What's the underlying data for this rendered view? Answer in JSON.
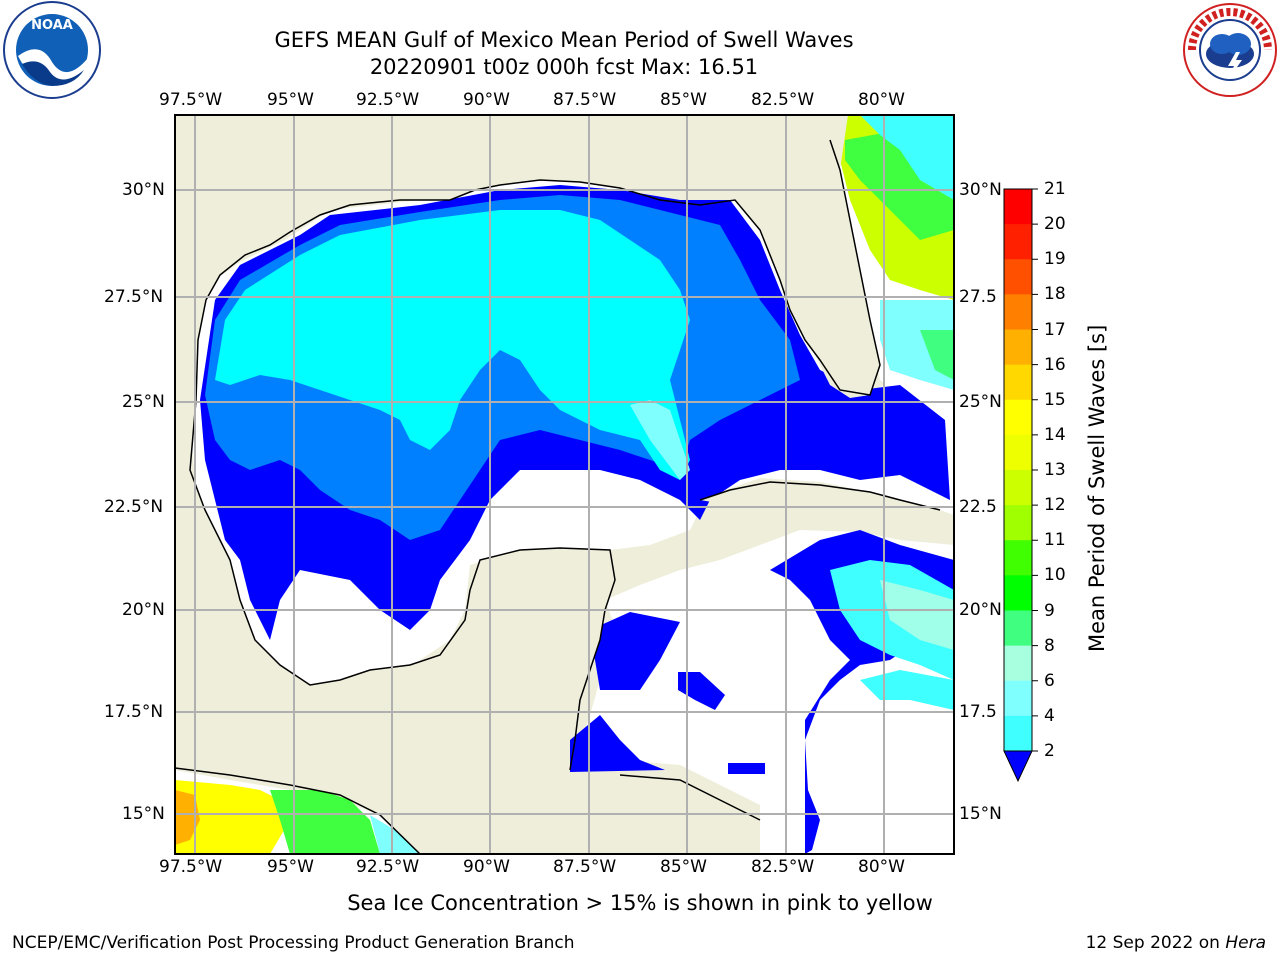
{
  "header": {
    "title_line1": "GEFS MEAN Gulf of Mexico Mean Period of Swell Waves",
    "title_line2": "20220901 t00z 000h fcst   Max: 16.51"
  },
  "logos": {
    "left": "NOAA",
    "right": "NATIONAL WEATHER SERVICE"
  },
  "map": {
    "lon_labels": [
      "97.5°W",
      "95°W",
      "92.5°W",
      "90°W",
      "87.5°W",
      "85°W",
      "82.5°W",
      "80°W"
    ],
    "lat_labels_left": [
      "30°N",
      "27.5°N",
      "25°N",
      "22.5°N",
      "20°N",
      "17.5°N",
      "15°N"
    ],
    "lat_labels_right": [
      "30°N",
      "27.5",
      "25°N",
      "22.5",
      "20°N",
      "17.5",
      "15°N"
    ],
    "colors": {
      "land": "#efeedb",
      "ocean_blank": "#ffffff",
      "grid": "#b0b0b0"
    }
  },
  "colorbar": {
    "title": "Mean Period of Swell Waves [s]",
    "tick_labels": [
      "21",
      "20",
      "19",
      "18",
      "17",
      "16",
      "15",
      "14",
      "13",
      "12",
      "11",
      "10",
      "9",
      "8",
      "6",
      "4",
      "2"
    ],
    "colors": [
      "#0000ff",
      "#0080ff",
      "#00ffff",
      "#40ffff",
      "#80ffff",
      "#a8ffe0",
      "#40ff80",
      "#00ff00",
      "#40ff00",
      "#a0ff00",
      "#ccff00",
      "#eeff00",
      "#ffff00",
      "#ffd800",
      "#ffb000",
      "#ff8000",
      "#ff5000",
      "#ff2000",
      "#ff0000"
    ]
  },
  "annotation": "Sea Ice Concentration > 15% is shown in pink to yellow",
  "footer": {
    "left": "NCEP/EMC/Verification Post Processing Product Generation Branch",
    "right_date": "12 Sep 2022 on",
    "right_host": "Hera"
  }
}
